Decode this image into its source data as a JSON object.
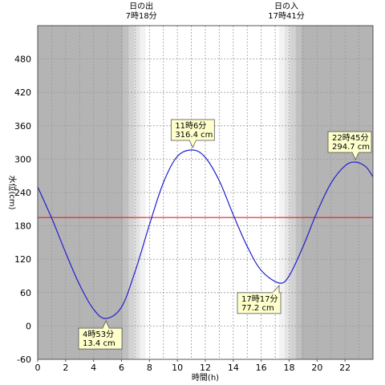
{
  "chart_data": {
    "type": "line",
    "xlabel": "時間(h)",
    "ylabel": "水位(cm)",
    "xlim": [
      0,
      24
    ],
    "ylim": [
      -60,
      540
    ],
    "x_ticks": [
      0,
      2,
      4,
      6,
      8,
      10,
      12,
      14,
      16,
      18,
      20,
      22
    ],
    "y_ticks": [
      -60,
      0,
      60,
      120,
      180,
      240,
      300,
      360,
      420,
      480
    ],
    "grid": true,
    "sun_events": [
      {
        "label": "日の出",
        "time_text": "7時18分",
        "hour": 7.3
      },
      {
        "label": "日の入",
        "time_text": "17時41分",
        "hour": 17.683
      }
    ],
    "reference_line": {
      "y": 195,
      "color": "#e02020"
    },
    "series": [
      {
        "color": "#2020d0",
        "x": [
          0,
          1,
          2,
          3,
          4,
          4.883,
          6,
          7,
          8,
          9,
          10,
          11.1,
          12,
          13,
          14,
          15,
          16,
          17.283,
          18,
          19,
          20,
          21,
          22,
          22.75,
          23.5,
          24
        ],
        "values": [
          250,
          194,
          132,
          74,
          30,
          13.4,
          34,
          100,
          182,
          258,
          305,
          316.4,
          303,
          261,
          200,
          143,
          100,
          77.2,
          90,
          143,
          205,
          257,
          288,
          294.7,
          286,
          268
        ]
      }
    ],
    "extremes": [
      {
        "hour": 4.883,
        "value": 13.4,
        "time_text": "4時53分",
        "value_text": "13.4 cm"
      },
      {
        "hour": 11.1,
        "value": 316.4,
        "time_text": "11時6分",
        "value_text": "316.4 cm"
      },
      {
        "hour": 17.283,
        "value": 77.2,
        "time_text": "17時17分",
        "value_text": "77.2 cm"
      },
      {
        "hour": 22.75,
        "value": 294.7,
        "time_text": "22時45分",
        "value_text": "294.7 cm"
      }
    ]
  },
  "colors": {
    "night": "#b4b4b4",
    "day": "#ffffff",
    "grid": "#9a9a9a",
    "callout_fill": "#ffffcc"
  }
}
